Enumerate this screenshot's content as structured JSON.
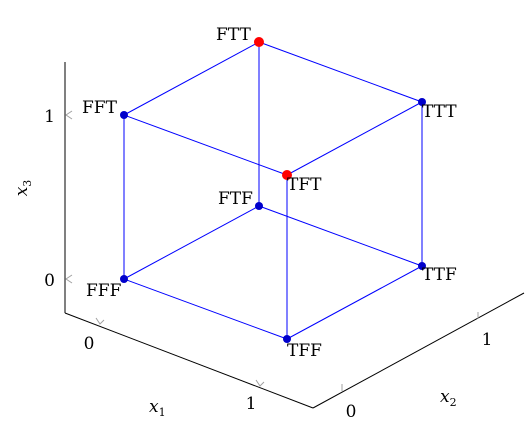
{
  "colors": {
    "edge": "#0000ff",
    "vertex": "#0000cc",
    "highlight": "#ff0000",
    "axis": "#000000",
    "tick": "#a0a0a0"
  },
  "axes": {
    "x1": {
      "name": "x",
      "sub": "1",
      "ticks": [
        "0",
        "1"
      ]
    },
    "x2": {
      "name": "x",
      "sub": "2",
      "ticks": [
        "0",
        "1"
      ]
    },
    "x3": {
      "name": "x",
      "sub": "3",
      "ticks": [
        "0",
        "1"
      ]
    }
  },
  "vertices": [
    {
      "id": "FFF",
      "label": "FFF",
      "coords": [
        0,
        0,
        0
      ],
      "highlighted": false
    },
    {
      "id": "TFF",
      "label": "TFF",
      "coords": [
        1,
        0,
        0
      ],
      "highlighted": false
    },
    {
      "id": "TTF",
      "label": "TTF",
      "coords": [
        1,
        1,
        0
      ],
      "highlighted": false
    },
    {
      "id": "FTF",
      "label": "FTF",
      "coords": [
        0,
        1,
        0
      ],
      "highlighted": false
    },
    {
      "id": "FFT",
      "label": "FFT",
      "coords": [
        0,
        0,
        1
      ],
      "highlighted": false
    },
    {
      "id": "TFT",
      "label": "TFT",
      "coords": [
        1,
        0,
        1
      ],
      "highlighted": true
    },
    {
      "id": "TTT",
      "label": "TTT",
      "coords": [
        1,
        1,
        1
      ],
      "highlighted": false
    },
    {
      "id": "FTT",
      "label": "FTT",
      "coords": [
        0,
        1,
        1
      ],
      "highlighted": true
    }
  ],
  "edges": [
    [
      "FFF",
      "TFF"
    ],
    [
      "TFF",
      "TTF"
    ],
    [
      "TTF",
      "FTF"
    ],
    [
      "FTF",
      "FFF"
    ],
    [
      "FFT",
      "TFT"
    ],
    [
      "TFT",
      "TTT"
    ],
    [
      "TTT",
      "FTT"
    ],
    [
      "FTT",
      "FFT"
    ],
    [
      "FFF",
      "FFT"
    ],
    [
      "TFF",
      "TFT"
    ],
    [
      "TTF",
      "TTT"
    ],
    [
      "FTF",
      "FTT"
    ]
  ]
}
